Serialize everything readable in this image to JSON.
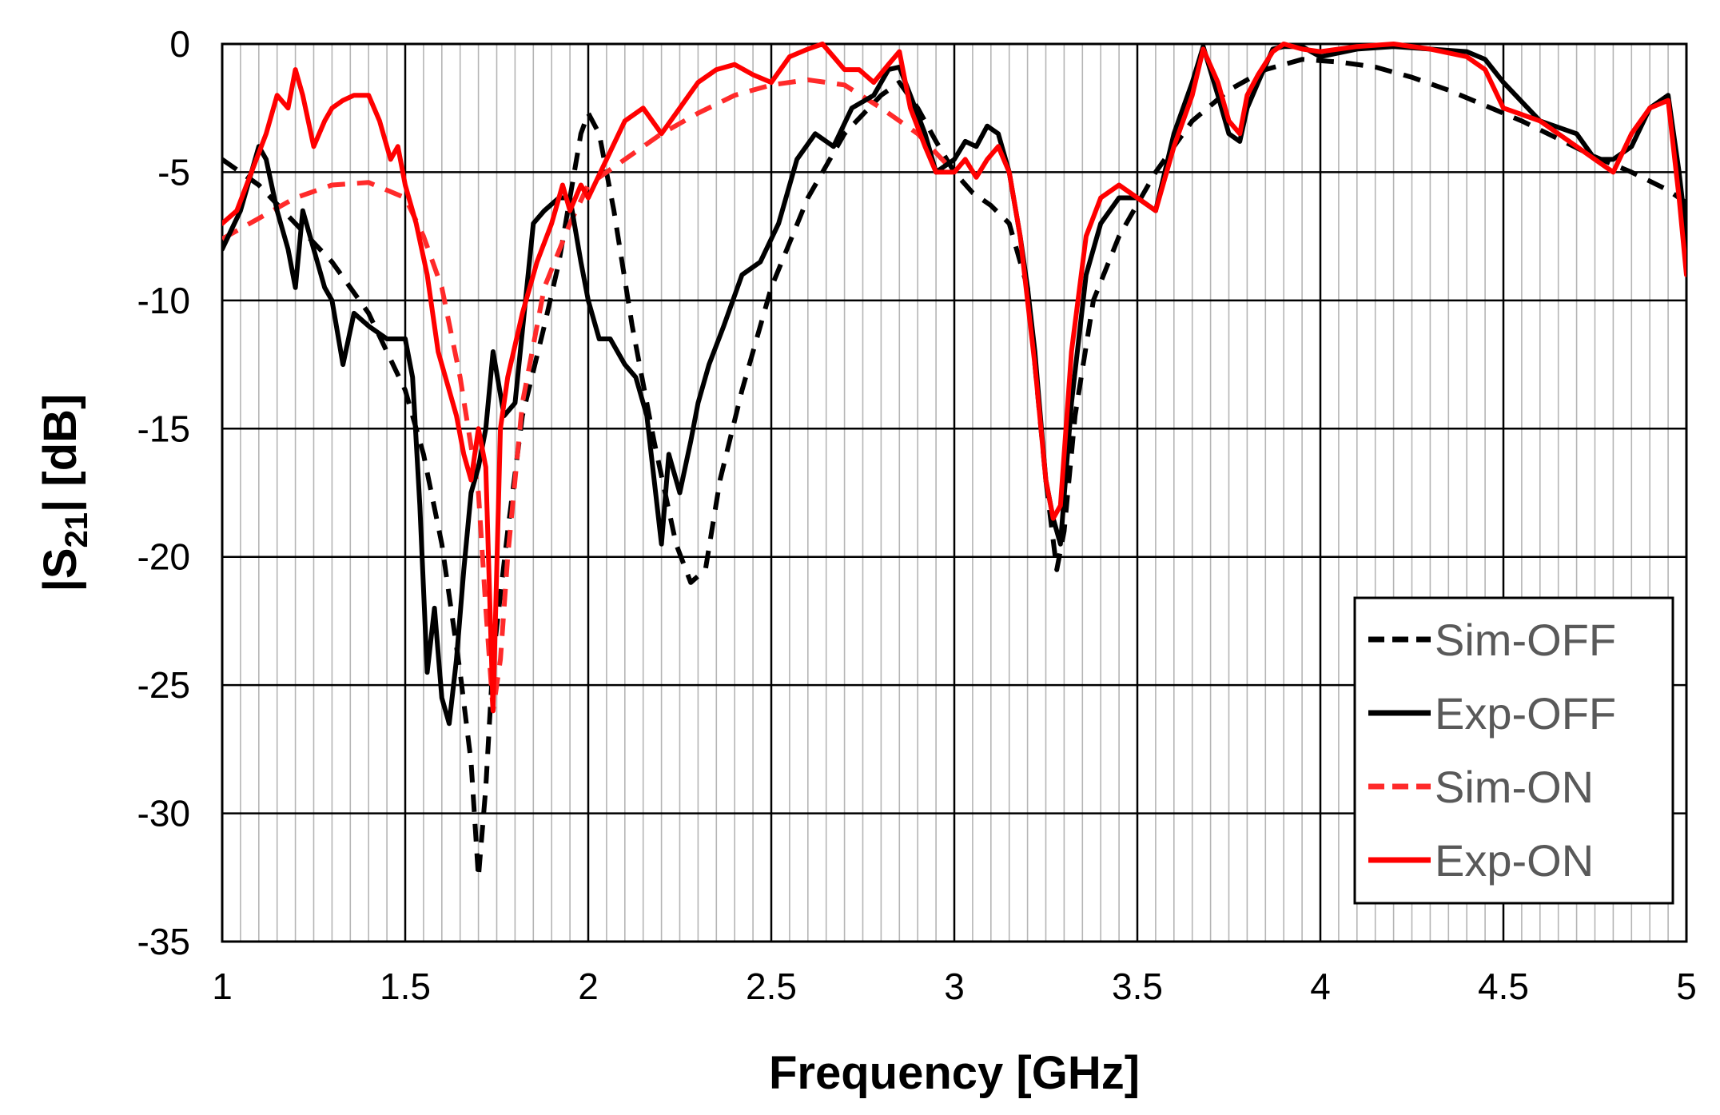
{
  "chart_data": {
    "type": "line",
    "xlabel": "Frequency [GHz]",
    "ylabel_main": "|S",
    "ylabel_sub": "21",
    "ylabel_tail": "| [dB]",
    "xlim": [
      1,
      5
    ],
    "ylim": [
      -35,
      0
    ],
    "x_ticks": [
      1,
      1.5,
      2,
      2.5,
      3,
      3.5,
      4,
      4.5,
      5
    ],
    "x_tick_labels": [
      "1",
      "1.5",
      "2",
      "2.5",
      "3",
      "3.5",
      "4",
      "4.5",
      "5"
    ],
    "y_ticks": [
      0,
      -5,
      -10,
      -15,
      -20,
      -25,
      -30,
      -35
    ],
    "y_tick_labels": [
      "0",
      "-5",
      "-10",
      "-15",
      "-20",
      "-25",
      "-30",
      "-35"
    ],
    "grid": "major and minor",
    "legend_position": "bottom-right",
    "series": [
      {
        "name": "Sim-OFF",
        "color": "#000000",
        "dash": "dashed",
        "x": [
          1.0,
          1.1,
          1.2,
          1.3,
          1.4,
          1.5,
          1.55,
          1.6,
          1.65,
          1.68,
          1.7,
          1.72,
          1.74,
          1.78,
          1.82,
          1.88,
          1.92,
          1.95,
          1.98,
          2.0,
          2.03,
          2.07,
          2.12,
          2.18,
          2.24,
          2.28,
          2.32,
          2.36,
          2.42,
          2.5,
          2.6,
          2.7,
          2.8,
          2.85,
          2.9,
          2.95,
          3.0,
          3.05,
          3.1,
          3.15,
          3.2,
          3.25,
          3.28,
          3.3,
          3.33,
          3.38,
          3.45,
          3.55,
          3.65,
          3.75,
          3.85,
          3.95,
          4.05,
          4.15,
          4.25,
          4.35,
          4.45,
          4.55,
          4.65,
          4.75,
          4.85,
          4.95,
          5.0
        ],
        "y": [
          -4.5,
          -5.5,
          -7.0,
          -8.5,
          -10.5,
          -13.5,
          -16.0,
          -19.5,
          -24.5,
          -28.0,
          -32.5,
          -29.0,
          -24.0,
          -19.0,
          -14.5,
          -11.0,
          -8.5,
          -6.0,
          -3.5,
          -2.7,
          -3.5,
          -6.5,
          -11.0,
          -15.5,
          -19.5,
          -21.0,
          -20.5,
          -17.0,
          -13.5,
          -9.5,
          -6.0,
          -3.5,
          -2.0,
          -1.5,
          -2.5,
          -3.8,
          -5.0,
          -5.8,
          -6.3,
          -7.0,
          -9.5,
          -17.0,
          -20.5,
          -19.0,
          -14.5,
          -10.0,
          -7.5,
          -5.0,
          -3.0,
          -1.8,
          -1.0,
          -0.6,
          -0.7,
          -0.9,
          -1.3,
          -1.8,
          -2.4,
          -3.0,
          -3.7,
          -4.4,
          -5.0,
          -5.7,
          -6.2
        ]
      },
      {
        "name": "Exp-OFF",
        "color": "#000000",
        "dash": "solid",
        "x": [
          1.0,
          1.05,
          1.1,
          1.12,
          1.15,
          1.18,
          1.2,
          1.22,
          1.25,
          1.28,
          1.3,
          1.33,
          1.36,
          1.4,
          1.45,
          1.5,
          1.52,
          1.54,
          1.56,
          1.58,
          1.6,
          1.62,
          1.64,
          1.66,
          1.68,
          1.7,
          1.72,
          1.74,
          1.77,
          1.8,
          1.85,
          1.88,
          1.92,
          1.95,
          1.98,
          2.0,
          2.03,
          2.06,
          2.1,
          2.13,
          2.16,
          2.2,
          2.22,
          2.25,
          2.28,
          2.3,
          2.33,
          2.37,
          2.42,
          2.47,
          2.52,
          2.57,
          2.62,
          2.67,
          2.72,
          2.78,
          2.82,
          2.85,
          2.88,
          2.92,
          2.95,
          3.0,
          3.03,
          3.06,
          3.09,
          3.12,
          3.15,
          3.18,
          3.2,
          3.22,
          3.25,
          3.27,
          3.29,
          3.32,
          3.36,
          3.4,
          3.45,
          3.5,
          3.55,
          3.6,
          3.65,
          3.68,
          3.72,
          3.75,
          3.78,
          3.8,
          3.83,
          3.87,
          3.9,
          3.95,
          4.0,
          4.1,
          4.2,
          4.3,
          4.4,
          4.45,
          4.5,
          4.6,
          4.7,
          4.75,
          4.8,
          4.85,
          4.9,
          4.95,
          4.98,
          5.0
        ],
        "y": [
          -8.0,
          -6.5,
          -4.0,
          -4.5,
          -6.5,
          -8.0,
          -9.5,
          -6.5,
          -8.0,
          -9.5,
          -10.0,
          -12.5,
          -10.5,
          -11.0,
          -11.5,
          -11.5,
          -13.0,
          -18.0,
          -24.5,
          -22.0,
          -25.5,
          -26.5,
          -24.0,
          -20.5,
          -17.5,
          -16.5,
          -15.0,
          -12.0,
          -14.5,
          -14.0,
          -7.0,
          -6.5,
          -6.0,
          -6.0,
          -8.5,
          -10.0,
          -11.5,
          -11.5,
          -12.5,
          -13.0,
          -14.5,
          -19.5,
          -16.0,
          -17.5,
          -15.5,
          -14.0,
          -12.5,
          -11.0,
          -9.0,
          -8.5,
          -7.0,
          -4.5,
          -3.5,
          -4.0,
          -2.5,
          -2.0,
          -1.0,
          -0.9,
          -2.0,
          -3.5,
          -5.0,
          -4.5,
          -3.8,
          -4.0,
          -3.2,
          -3.5,
          -5.0,
          -7.5,
          -9.5,
          -12.0,
          -17.0,
          -18.5,
          -19.5,
          -14.0,
          -9.0,
          -7.0,
          -6.0,
          -6.0,
          -6.5,
          -3.5,
          -1.5,
          -0.1,
          -2.0,
          -3.5,
          -3.8,
          -2.5,
          -1.5,
          -0.2,
          -0.1,
          -0.1,
          -0.5,
          -0.2,
          -0.1,
          -0.2,
          -0.3,
          -0.6,
          -1.5,
          -3.0,
          -3.5,
          -4.5,
          -4.5,
          -4.0,
          -2.5,
          -2.0,
          -5.0,
          -7.5
        ]
      },
      {
        "name": "Sim-ON",
        "color": "#ff2a2a",
        "dash": "dashed",
        "x": [
          1.0,
          1.1,
          1.2,
          1.3,
          1.4,
          1.5,
          1.55,
          1.6,
          1.65,
          1.7,
          1.72,
          1.74,
          1.76,
          1.78,
          1.82,
          1.88,
          1.95,
          2.0,
          2.1,
          2.2,
          2.3,
          2.4,
          2.5,
          2.6,
          2.7,
          2.8,
          2.9,
          3.0
        ],
        "y": [
          -7.6,
          -6.8,
          -6.0,
          -5.5,
          -5.4,
          -6.0,
          -7.5,
          -9.5,
          -13.0,
          -17.5,
          -22.0,
          -26.0,
          -24.0,
          -20.0,
          -14.0,
          -9.5,
          -7.0,
          -5.5,
          -4.5,
          -3.5,
          -2.7,
          -2.0,
          -1.6,
          -1.4,
          -1.6,
          -2.5,
          -3.5,
          -5.0
        ]
      },
      {
        "name": "Exp-ON",
        "color": "#ff0000",
        "dash": "solid",
        "x": [
          1.0,
          1.04,
          1.08,
          1.12,
          1.15,
          1.18,
          1.2,
          1.22,
          1.25,
          1.28,
          1.3,
          1.33,
          1.36,
          1.4,
          1.43,
          1.46,
          1.48,
          1.5,
          1.53,
          1.56,
          1.59,
          1.62,
          1.64,
          1.66,
          1.68,
          1.7,
          1.72,
          1.74,
          1.76,
          1.78,
          1.82,
          1.86,
          1.9,
          1.93,
          1.95,
          1.98,
          2.0,
          2.05,
          2.1,
          2.15,
          2.2,
          2.25,
          2.3,
          2.35,
          2.4,
          2.45,
          2.5,
          2.55,
          2.6,
          2.64,
          2.67,
          2.7,
          2.74,
          2.78,
          2.82,
          2.85,
          2.88,
          2.92,
          2.95,
          3.0,
          3.03,
          3.06,
          3.09,
          3.12,
          3.15,
          3.18,
          3.2,
          3.22,
          3.25,
          3.27,
          3.29,
          3.32,
          3.36,
          3.4,
          3.45,
          3.5,
          3.55,
          3.6,
          3.65,
          3.68,
          3.72,
          3.75,
          3.78,
          3.8,
          3.83,
          3.87,
          3.9,
          3.95,
          4.0,
          4.1,
          4.2,
          4.3,
          4.4,
          4.45,
          4.5,
          4.6,
          4.7,
          4.75,
          4.8,
          4.85,
          4.9,
          4.95,
          4.98,
          5.0
        ],
        "y": [
          -7.0,
          -6.5,
          -5.0,
          -3.5,
          -2.0,
          -2.5,
          -1.0,
          -2.0,
          -4.0,
          -3.0,
          -2.5,
          -2.2,
          -2.0,
          -2.0,
          -3.0,
          -4.5,
          -4.0,
          -5.5,
          -7.0,
          -9.0,
          -12.0,
          -13.5,
          -14.5,
          -16.0,
          -17.0,
          -15.0,
          -16.5,
          -26.0,
          -15.0,
          -13.0,
          -10.5,
          -8.5,
          -7.0,
          -5.5,
          -6.5,
          -5.5,
          -6.0,
          -4.5,
          -3.0,
          -2.5,
          -3.5,
          -2.5,
          -1.5,
          -1.0,
          -0.8,
          -1.2,
          -1.5,
          -0.5,
          -0.2,
          0.0,
          -0.5,
          -1.0,
          -1.0,
          -1.5,
          -0.8,
          -0.3,
          -2.5,
          -4.0,
          -5.0,
          -5.0,
          -4.5,
          -5.2,
          -4.5,
          -4.0,
          -5.0,
          -7.5,
          -10.0,
          -12.5,
          -17.0,
          -18.5,
          -18.0,
          -12.0,
          -7.5,
          -6.0,
          -5.5,
          -6.0,
          -6.5,
          -4.0,
          -2.0,
          -0.2,
          -1.5,
          -3.0,
          -3.5,
          -2.0,
          -1.2,
          -0.3,
          0.0,
          -0.2,
          -0.3,
          -0.1,
          0.0,
          -0.2,
          -0.5,
          -1.0,
          -2.5,
          -3.0,
          -4.0,
          -4.5,
          -5.0,
          -3.5,
          -2.5,
          -2.2,
          -6.0,
          -9.0
        ]
      }
    ]
  }
}
